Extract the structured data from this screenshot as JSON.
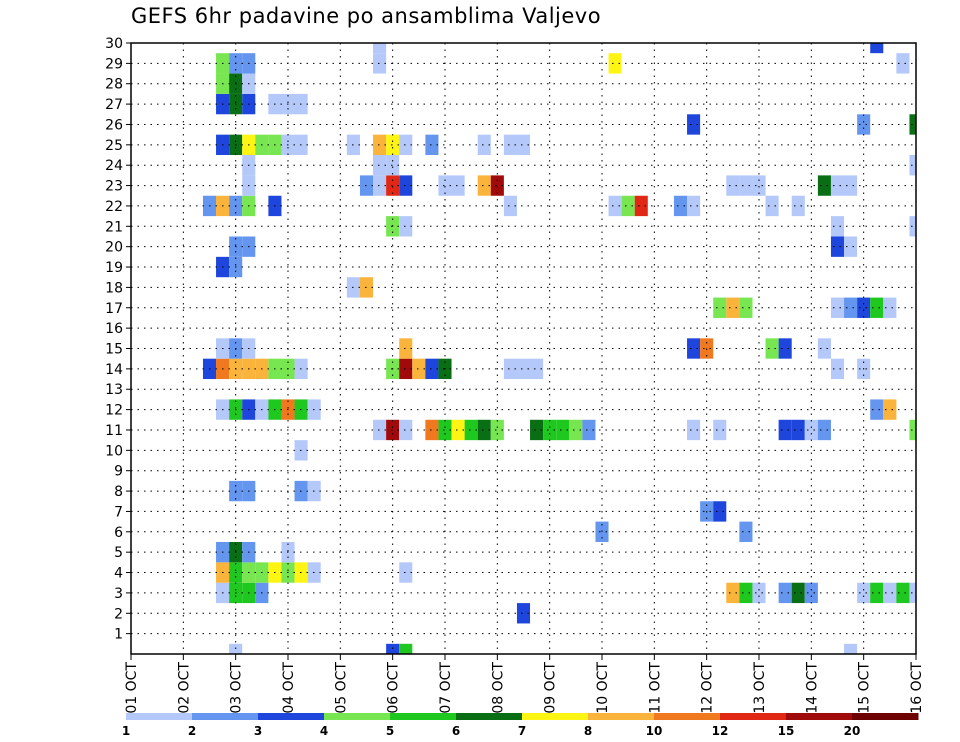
{
  "chart_data": {
    "type": "heatmap",
    "title": "GEFS 6hr padavine po ansamblima Valjevo",
    "xlabel": "",
    "ylabel": "",
    "ylim": [
      0,
      30
    ],
    "y_ticks": [
      1,
      2,
      3,
      4,
      5,
      6,
      7,
      8,
      9,
      10,
      11,
      12,
      13,
      14,
      15,
      16,
      17,
      18,
      19,
      20,
      21,
      22,
      23,
      24,
      25,
      26,
      27,
      28,
      29,
      30
    ],
    "x_range_steps": [
      0,
      60
    ],
    "x_ticks": [
      {
        "step": 0,
        "label": "01 OCT"
      },
      {
        "step": 4,
        "label": "02 OCT"
      },
      {
        "step": 8,
        "label": "03 OCT"
      },
      {
        "step": 12,
        "label": "04 OCT"
      },
      {
        "step": 16,
        "label": "05 OCT"
      },
      {
        "step": 20,
        "label": "06 OCT"
      },
      {
        "step": 24,
        "label": "07 OCT"
      },
      {
        "step": 28,
        "label": "08 OCT"
      },
      {
        "step": 32,
        "label": "09 OCT"
      },
      {
        "step": 36,
        "label": "10 OCT"
      },
      {
        "step": 40,
        "label": "11 OCT"
      },
      {
        "step": 44,
        "label": "12 OCT"
      },
      {
        "step": 48,
        "label": "13 OCT"
      },
      {
        "step": 52,
        "label": "14 OCT"
      },
      {
        "step": 56,
        "label": "15 OCT"
      },
      {
        "step": 60,
        "label": "16 OCT"
      }
    ],
    "colorbar": {
      "colors": [
        "#b4c8fa",
        "#6496f0",
        "#1e46dc",
        "#78e650",
        "#1ec81e",
        "#0a6e14",
        "#fff514",
        "#fab43c",
        "#f0781e",
        "#e12814",
        "#a00a0a",
        "#6e0000"
      ],
      "labels": [
        {
          "pos": 0,
          "text": "1"
        },
        {
          "pos": 1,
          "text": "2"
        },
        {
          "pos": 2,
          "text": "3"
        },
        {
          "pos": 3,
          "text": "4"
        },
        {
          "pos": 4,
          "text": "5"
        },
        {
          "pos": 5,
          "text": "6"
        },
        {
          "pos": 6,
          "text": "7"
        },
        {
          "pos": 7,
          "text": "8"
        },
        {
          "pos": 8,
          "text": "10"
        },
        {
          "pos": 9,
          "text": "12"
        },
        {
          "pos": 10,
          "text": "15"
        },
        {
          "pos": 11,
          "text": "20"
        }
      ]
    },
    "cells": [
      {
        "step": 20,
        "member": 0,
        "level": 2
      },
      {
        "step": 21,
        "member": 0,
        "level": 4
      },
      {
        "step": 8,
        "member": 0,
        "level": 0
      },
      {
        "step": 55,
        "member": 0,
        "level": 0
      },
      {
        "step": 30,
        "member": 2,
        "level": 2
      },
      {
        "step": 7,
        "member": 3,
        "level": 0
      },
      {
        "step": 8,
        "member": 3,
        "level": 4
      },
      {
        "step": 9,
        "member": 3,
        "level": 4
      },
      {
        "step": 10,
        "member": 3,
        "level": 1
      },
      {
        "step": 46,
        "member": 3,
        "level": 7
      },
      {
        "step": 47,
        "member": 3,
        "level": 4
      },
      {
        "step": 48,
        "member": 3,
        "level": 0
      },
      {
        "step": 50,
        "member": 3,
        "level": 1
      },
      {
        "step": 51,
        "member": 3,
        "level": 5
      },
      {
        "step": 52,
        "member": 3,
        "level": 1
      },
      {
        "step": 56,
        "member": 3,
        "level": 0
      },
      {
        "step": 57,
        "member": 3,
        "level": 4
      },
      {
        "step": 58,
        "member": 3,
        "level": 0
      },
      {
        "step": 59,
        "member": 3,
        "level": 4
      },
      {
        "step": 60,
        "member": 3,
        "level": 0
      },
      {
        "step": 7,
        "member": 4,
        "level": 7
      },
      {
        "step": 8,
        "member": 4,
        "level": 4
      },
      {
        "step": 9,
        "member": 4,
        "level": 3
      },
      {
        "step": 10,
        "member": 4,
        "level": 3
      },
      {
        "step": 11,
        "member": 4,
        "level": 6
      },
      {
        "step": 12,
        "member": 4,
        "level": 3
      },
      {
        "step": 13,
        "member": 4,
        "level": 6
      },
      {
        "step": 14,
        "member": 4,
        "level": 0
      },
      {
        "step": 21,
        "member": 4,
        "level": 0
      },
      {
        "step": 7,
        "member": 5,
        "level": 1
      },
      {
        "step": 8,
        "member": 5,
        "level": 5
      },
      {
        "step": 9,
        "member": 5,
        "level": 1
      },
      {
        "step": 12,
        "member": 5,
        "level": 0
      },
      {
        "step": 36,
        "member": 6,
        "level": 1
      },
      {
        "step": 47,
        "member": 6,
        "level": 1
      },
      {
        "step": 44,
        "member": 7,
        "level": 1
      },
      {
        "step": 45,
        "member": 7,
        "level": 2
      },
      {
        "step": 8,
        "member": 8,
        "level": 1
      },
      {
        "step": 9,
        "member": 8,
        "level": 1
      },
      {
        "step": 13,
        "member": 8,
        "level": 1
      },
      {
        "step": 14,
        "member": 8,
        "level": 0
      },
      {
        "step": 13,
        "member": 10,
        "level": 0
      },
      {
        "step": 19,
        "member": 11,
        "level": 0
      },
      {
        "step": 20,
        "member": 11,
        "level": 10
      },
      {
        "step": 21,
        "member": 11,
        "level": 0
      },
      {
        "step": 23,
        "member": 11,
        "level": 8
      },
      {
        "step": 24,
        "member": 11,
        "level": 4
      },
      {
        "step": 25,
        "member": 11,
        "level": 6
      },
      {
        "step": 26,
        "member": 11,
        "level": 4
      },
      {
        "step": 27,
        "member": 11,
        "level": 5
      },
      {
        "step": 28,
        "member": 11,
        "level": 3
      },
      {
        "step": 31,
        "member": 11,
        "level": 5
      },
      {
        "step": 32,
        "member": 11,
        "level": 4
      },
      {
        "step": 33,
        "member": 11,
        "level": 4
      },
      {
        "step": 34,
        "member": 11,
        "level": 3
      },
      {
        "step": 35,
        "member": 11,
        "level": 1
      },
      {
        "step": 43,
        "member": 11,
        "level": 0
      },
      {
        "step": 45,
        "member": 11,
        "level": 0
      },
      {
        "step": 50,
        "member": 11,
        "level": 2
      },
      {
        "step": 51,
        "member": 11,
        "level": 2
      },
      {
        "step": 52,
        "member": 11,
        "level": 0
      },
      {
        "step": 53,
        "member": 11,
        "level": 1
      },
      {
        "step": 60,
        "member": 11,
        "level": 3
      },
      {
        "step": 7,
        "member": 12,
        "level": 0
      },
      {
        "step": 8,
        "member": 12,
        "level": 4
      },
      {
        "step": 9,
        "member": 12,
        "level": 2
      },
      {
        "step": 10,
        "member": 12,
        "level": 0
      },
      {
        "step": 11,
        "member": 12,
        "level": 4
      },
      {
        "step": 12,
        "member": 12,
        "level": 8
      },
      {
        "step": 13,
        "member": 12,
        "level": 4
      },
      {
        "step": 14,
        "member": 12,
        "level": 0
      },
      {
        "step": 57,
        "member": 12,
        "level": 1
      },
      {
        "step": 58,
        "member": 12,
        "level": 7
      },
      {
        "step": 6,
        "member": 14,
        "level": 2
      },
      {
        "step": 7,
        "member": 14,
        "level": 8
      },
      {
        "step": 8,
        "member": 14,
        "level": 7
      },
      {
        "step": 9,
        "member": 14,
        "level": 7
      },
      {
        "step": 10,
        "member": 14,
        "level": 7
      },
      {
        "step": 11,
        "member": 14,
        "level": 3
      },
      {
        "step": 12,
        "member": 14,
        "level": 3
      },
      {
        "step": 13,
        "member": 14,
        "level": 0
      },
      {
        "step": 20,
        "member": 14,
        "level": 3
      },
      {
        "step": 21,
        "member": 14,
        "level": 10
      },
      {
        "step": 22,
        "member": 14,
        "level": 7
      },
      {
        "step": 23,
        "member": 14,
        "level": 2
      },
      {
        "step": 24,
        "member": 14,
        "level": 5
      },
      {
        "step": 29,
        "member": 14,
        "level": 0
      },
      {
        "step": 30,
        "member": 14,
        "level": 0
      },
      {
        "step": 31,
        "member": 14,
        "level": 0
      },
      {
        "step": 54,
        "member": 14,
        "level": 0
      },
      {
        "step": 56,
        "member": 14,
        "level": 0
      },
      {
        "step": 7,
        "member": 15,
        "level": 0
      },
      {
        "step": 8,
        "member": 15,
        "level": 1
      },
      {
        "step": 9,
        "member": 15,
        "level": 0
      },
      {
        "step": 21,
        "member": 15,
        "level": 7
      },
      {
        "step": 43,
        "member": 15,
        "level": 2
      },
      {
        "step": 44,
        "member": 15,
        "level": 8
      },
      {
        "step": 49,
        "member": 15,
        "level": 3
      },
      {
        "step": 50,
        "member": 15,
        "level": 2
      },
      {
        "step": 53,
        "member": 15,
        "level": 0
      },
      {
        "step": 45,
        "member": 17,
        "level": 3
      },
      {
        "step": 46,
        "member": 17,
        "level": 7
      },
      {
        "step": 47,
        "member": 17,
        "level": 3
      },
      {
        "step": 54,
        "member": 17,
        "level": 0
      },
      {
        "step": 55,
        "member": 17,
        "level": 1
      },
      {
        "step": 56,
        "member": 17,
        "level": 2
      },
      {
        "step": 57,
        "member": 17,
        "level": 4
      },
      {
        "step": 58,
        "member": 17,
        "level": 0
      },
      {
        "step": 17,
        "member": 18,
        "level": 0
      },
      {
        "step": 18,
        "member": 18,
        "level": 7
      },
      {
        "step": 7,
        "member": 19,
        "level": 2
      },
      {
        "step": 8,
        "member": 19,
        "level": 1
      },
      {
        "step": 8,
        "member": 20,
        "level": 1
      },
      {
        "step": 9,
        "member": 20,
        "level": 1
      },
      {
        "step": 54,
        "member": 20,
        "level": 2
      },
      {
        "step": 55,
        "member": 20,
        "level": 0
      },
      {
        "step": 20,
        "member": 21,
        "level": 3
      },
      {
        "step": 21,
        "member": 21,
        "level": 0
      },
      {
        "step": 54,
        "member": 21,
        "level": 0
      },
      {
        "step": 60,
        "member": 21,
        "level": 0
      },
      {
        "step": 6,
        "member": 22,
        "level": 1
      },
      {
        "step": 7,
        "member": 22,
        "level": 7
      },
      {
        "step": 8,
        "member": 22,
        "level": 1
      },
      {
        "step": 9,
        "member": 22,
        "level": 3
      },
      {
        "step": 11,
        "member": 22,
        "level": 2
      },
      {
        "step": 29,
        "member": 22,
        "level": 0
      },
      {
        "step": 37,
        "member": 22,
        "level": 0
      },
      {
        "step": 38,
        "member": 22,
        "level": 3
      },
      {
        "step": 39,
        "member": 22,
        "level": 9
      },
      {
        "step": 42,
        "member": 22,
        "level": 1
      },
      {
        "step": 43,
        "member": 22,
        "level": 0
      },
      {
        "step": 49,
        "member": 22,
        "level": 0
      },
      {
        "step": 51,
        "member": 22,
        "level": 0
      },
      {
        "step": 9,
        "member": 23,
        "level": 0
      },
      {
        "step": 18,
        "member": 23,
        "level": 1
      },
      {
        "step": 19,
        "member": 23,
        "level": 0
      },
      {
        "step": 20,
        "member": 23,
        "level": 9
      },
      {
        "step": 21,
        "member": 23,
        "level": 2
      },
      {
        "step": 24,
        "member": 23,
        "level": 0
      },
      {
        "step": 25,
        "member": 23,
        "level": 0
      },
      {
        "step": 27,
        "member": 23,
        "level": 7
      },
      {
        "step": 28,
        "member": 23,
        "level": 10
      },
      {
        "step": 46,
        "member": 23,
        "level": 0
      },
      {
        "step": 47,
        "member": 23,
        "level": 0
      },
      {
        "step": 48,
        "member": 23,
        "level": 0
      },
      {
        "step": 53,
        "member": 23,
        "level": 5
      },
      {
        "step": 54,
        "member": 23,
        "level": 0
      },
      {
        "step": 55,
        "member": 23,
        "level": 0
      },
      {
        "step": 9,
        "member": 24,
        "level": 0
      },
      {
        "step": 19,
        "member": 24,
        "level": 0
      },
      {
        "step": 20,
        "member": 24,
        "level": 0
      },
      {
        "step": 60,
        "member": 24,
        "level": 0
      },
      {
        "step": 7,
        "member": 25,
        "level": 2
      },
      {
        "step": 8,
        "member": 25,
        "level": 5
      },
      {
        "step": 9,
        "member": 25,
        "level": 6
      },
      {
        "step": 10,
        "member": 25,
        "level": 3
      },
      {
        "step": 11,
        "member": 25,
        "level": 3
      },
      {
        "step": 12,
        "member": 25,
        "level": 0
      },
      {
        "step": 13,
        "member": 25,
        "level": 0
      },
      {
        "step": 17,
        "member": 25,
        "level": 0
      },
      {
        "step": 19,
        "member": 25,
        "level": 7
      },
      {
        "step": 20,
        "member": 25,
        "level": 6
      },
      {
        "step": 21,
        "member": 25,
        "level": 0
      },
      {
        "step": 23,
        "member": 25,
        "level": 1
      },
      {
        "step": 27,
        "member": 25,
        "level": 0
      },
      {
        "step": 29,
        "member": 25,
        "level": 0
      },
      {
        "step": 30,
        "member": 25,
        "level": 0
      },
      {
        "step": 43,
        "member": 26,
        "level": 2
      },
      {
        "step": 56,
        "member": 26,
        "level": 1
      },
      {
        "step": 60,
        "member": 26,
        "level": 5
      },
      {
        "step": 7,
        "member": 27,
        "level": 2
      },
      {
        "step": 8,
        "member": 27,
        "level": 5
      },
      {
        "step": 9,
        "member": 27,
        "level": 2
      },
      {
        "step": 11,
        "member": 27,
        "level": 0
      },
      {
        "step": 12,
        "member": 27,
        "level": 0
      },
      {
        "step": 13,
        "member": 27,
        "level": 0
      },
      {
        "step": 7,
        "member": 28,
        "level": 3
      },
      {
        "step": 8,
        "member": 28,
        "level": 5
      },
      {
        "step": 9,
        "member": 28,
        "level": 0
      },
      {
        "step": 7,
        "member": 29,
        "level": 3
      },
      {
        "step": 8,
        "member": 29,
        "level": 1
      },
      {
        "step": 9,
        "member": 29,
        "level": 1
      },
      {
        "step": 19,
        "member": 29,
        "level": 0
      },
      {
        "step": 37,
        "member": 29,
        "level": 6
      },
      {
        "step": 59,
        "member": 29,
        "level": 0
      },
      {
        "step": 19,
        "member": 30,
        "level": 0
      },
      {
        "step": 57,
        "member": 30,
        "level": 2
      }
    ]
  }
}
